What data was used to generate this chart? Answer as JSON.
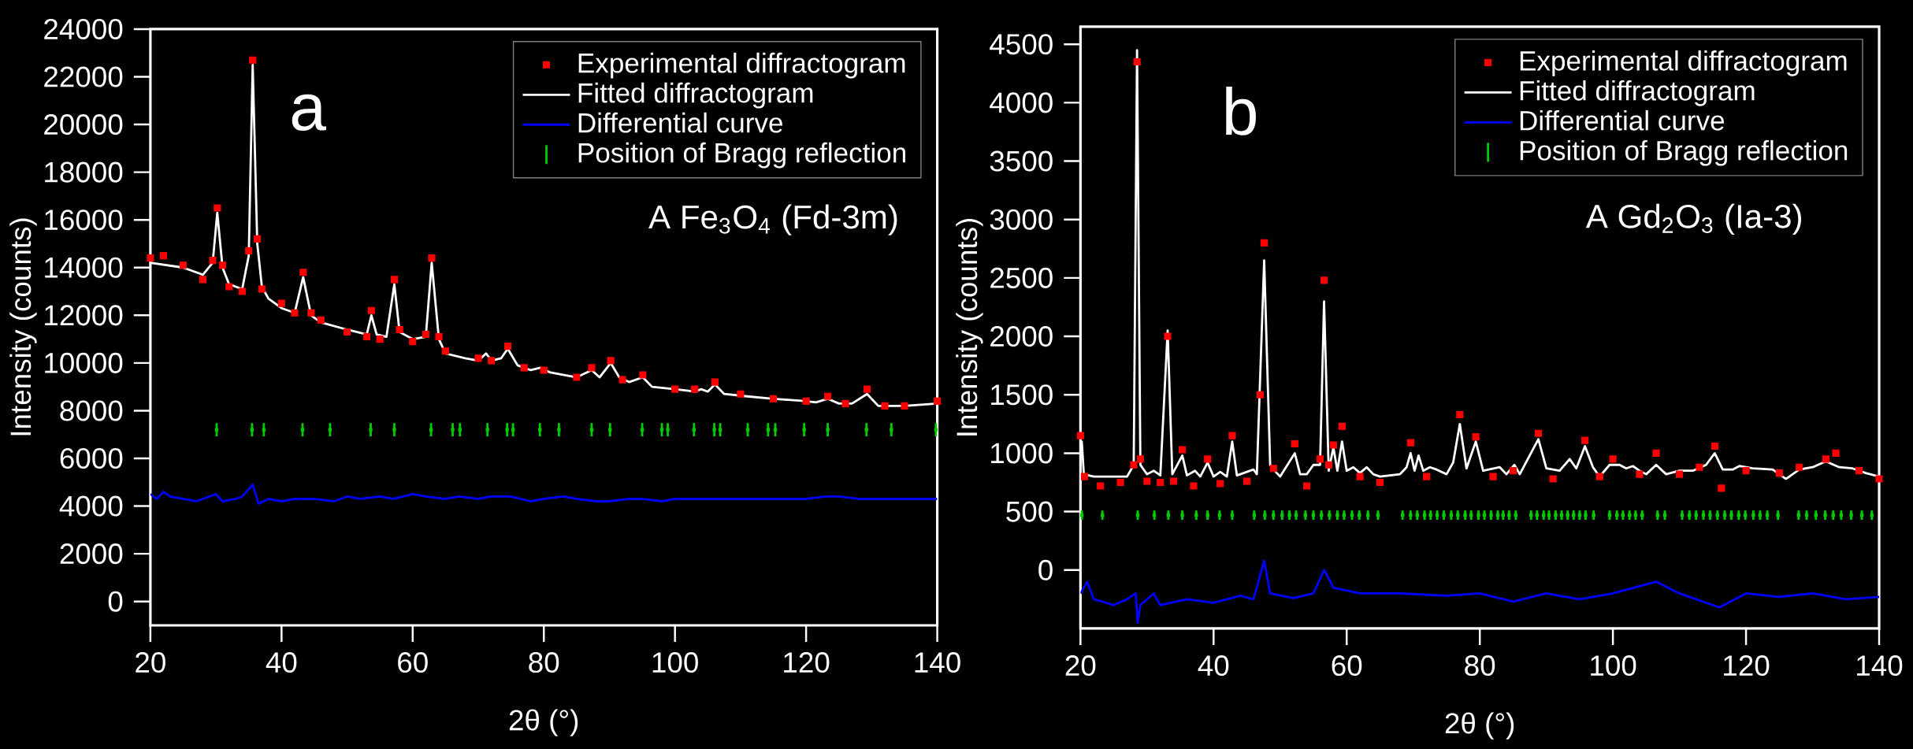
{
  "chart_data": [
    {
      "type": "scatter",
      "xlabel": "2θ (°)",
      "ylabel": "Intensity (counts)",
      "xlim": [
        20,
        140
      ],
      "xticks": [
        20,
        40,
        60,
        80,
        100,
        120,
        140
      ],
      "ylim": [
        -1000,
        24000
      ],
      "yticks": [
        0,
        2000,
        4000,
        6000,
        8000,
        10000,
        12000,
        14000,
        16000,
        18000,
        20000,
        22000,
        24000
      ],
      "legend": "top right",
      "annotations": [
        "a",
        "A Fe$_{3}$O$_{4}$ (Fd-3m)"
      ],
      "series": [
        {
          "name": "Experimental diffractogram",
          "color": "#ff0000",
          "marker": "square",
          "x": [
            20,
            22,
            25,
            28,
            29.5,
            30.2,
            31,
            32,
            34,
            35,
            35.6,
            36.3,
            37,
            40,
            42,
            43.3,
            44.5,
            46,
            50,
            53,
            53.7,
            55,
            57.2,
            58,
            60,
            62,
            62.9,
            64,
            65,
            70,
            72,
            74.5,
            77,
            80,
            85,
            87.3,
            90.2,
            92,
            95.1,
            100,
            103,
            106.1,
            110,
            115,
            120,
            123.3,
            126,
            129.3,
            132,
            135,
            140
          ],
          "values": [
            14400,
            14500,
            14100,
            13500,
            14300,
            16500,
            14100,
            13200,
            13000,
            14700,
            22700,
            15200,
            13100,
            12500,
            12100,
            13800,
            12100,
            11800,
            11300,
            11100,
            12200,
            11000,
            13500,
            11400,
            10900,
            11200,
            14400,
            11100,
            10500,
            10200,
            10100,
            10700,
            9800,
            9700,
            9400,
            9800,
            10100,
            9300,
            9500,
            8900,
            8900,
            9200,
            8700,
            8500,
            8400,
            8600,
            8300,
            8900,
            8200,
            8200,
            8400
          ]
        },
        {
          "type": "line",
          "name": "Fitted diffractogram",
          "color": "#ffffff",
          "marker": "none",
          "x": [
            20,
            25,
            28,
            29.5,
            30.2,
            31,
            32,
            34,
            35,
            35.6,
            36.3,
            37,
            38,
            40,
            42,
            43.3,
            44.5,
            46,
            50,
            53,
            53.7,
            54.5,
            56,
            57.2,
            58,
            60,
            62,
            62.9,
            64,
            65,
            68,
            70,
            71.2,
            72,
            73.5,
            74.5,
            76,
            78,
            79.5,
            81,
            85,
            87.3,
            88.5,
            90.2,
            91.5,
            93,
            95.1,
            96.5,
            100,
            103,
            104,
            105,
            106.1,
            107.5,
            111,
            115,
            120,
            121.5,
            123.3,
            125,
            127,
            129.3,
            131,
            135,
            140
          ],
          "values": [
            14200,
            14000,
            13700,
            14200,
            16300,
            14000,
            13300,
            13100,
            14500,
            22500,
            15000,
            13200,
            12700,
            12300,
            12100,
            13600,
            12000,
            11700,
            11400,
            11200,
            12000,
            11200,
            11100,
            13300,
            11300,
            11000,
            11100,
            14200,
            11000,
            10400,
            10200,
            10100,
            10400,
            10100,
            10200,
            10600,
            9900,
            9700,
            9800,
            9600,
            9400,
            9700,
            9400,
            10000,
            9400,
            9200,
            9400,
            9000,
            8900,
            8800,
            8900,
            8800,
            9100,
            8700,
            8600,
            8500,
            8400,
            8350,
            8500,
            8300,
            8300,
            8700,
            8200,
            8200,
            8300
          ]
        },
        {
          "type": "line",
          "name": "Differential curve",
          "color": "#0000ff",
          "marker": "none",
          "x": [
            20,
            21,
            22,
            23,
            25,
            27,
            28,
            30,
            31,
            33,
            34,
            35.6,
            36.5,
            38,
            40,
            42,
            45,
            48,
            50,
            52,
            55,
            57,
            60,
            62,
            65,
            67,
            70,
            72,
            75,
            78,
            80,
            83,
            85,
            88,
            90,
            93,
            95,
            98,
            100,
            105,
            110,
            115,
            120,
            123,
            125,
            128,
            130,
            135,
            140
          ],
          "values": [
            4500,
            4300,
            4600,
            4400,
            4300,
            4200,
            4300,
            4500,
            4200,
            4300,
            4400,
            4900,
            4100,
            4300,
            4200,
            4300,
            4300,
            4200,
            4400,
            4300,
            4400,
            4300,
            4500,
            4400,
            4300,
            4400,
            4300,
            4400,
            4400,
            4200,
            4300,
            4400,
            4300,
            4200,
            4200,
            4300,
            4300,
            4200,
            4300,
            4300,
            4300,
            4300,
            4300,
            4400,
            4400,
            4300,
            4300,
            4300,
            4300
          ]
        },
        {
          "name": "Position of Bragg reflection",
          "color": "#00cc00",
          "marker": "square",
          "errors": [
            280,
            280,
            280,
            280,
            280,
            280,
            280,
            280,
            280,
            280,
            280,
            280,
            280,
            280,
            280,
            280,
            280,
            280,
            280,
            280,
            280,
            280,
            280,
            280,
            280,
            280,
            280,
            280,
            280,
            280,
            280
          ],
          "x": [
            30.1,
            35.5,
            37.3,
            43.2,
            47.4,
            53.6,
            57.2,
            62.8,
            66.1,
            67.2,
            71.4,
            74.4,
            75.3,
            79.4,
            82.3,
            87.3,
            90.1,
            95.0,
            98.0,
            98.9,
            102.9,
            106.0,
            106.9,
            111.1,
            114.2,
            115.3,
            119.7,
            123.3,
            129.2,
            133.0,
            139.8
          ],
          "values": [
            7200,
            7200,
            7200,
            7200,
            7200,
            7200,
            7200,
            7200,
            7200,
            7200,
            7200,
            7200,
            7200,
            7200,
            7200,
            7200,
            7200,
            7200,
            7200,
            7200,
            7200,
            7200,
            7200,
            7200,
            7200,
            7200,
            7200,
            7200,
            7200,
            7200,
            7200
          ]
        }
      ]
    },
    {
      "type": "scatter",
      "xlabel": "2θ (°)",
      "ylabel": "Intensity (counts)",
      "xlim": [
        20,
        140
      ],
      "xticks": [
        20,
        40,
        60,
        80,
        100,
        120,
        140
      ],
      "ylim": [
        -500,
        4650
      ],
      "yticks": [
        0,
        500,
        1000,
        1500,
        2000,
        2500,
        3000,
        3500,
        4000,
        4500
      ],
      "legend": "top right",
      "annotations": [
        "b",
        "A Gd$_{2}$O$_{3}$ (Ia-3)"
      ],
      "series": [
        {
          "name": "Experimental diffractogram",
          "color": "#ff0000",
          "marker": "square",
          "x": [
            20,
            20.6,
            23,
            26,
            28,
            28.5,
            29,
            30,
            32,
            33.1,
            34,
            35.3,
            37,
            39.1,
            41,
            42.8,
            45,
            47,
            47.6,
            49,
            52.2,
            54,
            56,
            56.6,
            57.3,
            58,
            59.3,
            62,
            65,
            69.6,
            72,
            77,
            79.4,
            82,
            85,
            88.8,
            91,
            95.8,
            98,
            100,
            104,
            106.5,
            110,
            113,
            115.3,
            116.3,
            120,
            125,
            128,
            132,
            133.5,
            137,
            140
          ],
          "values": [
            1150,
            800,
            720,
            750,
            900,
            4350,
            950,
            760,
            750,
            2000,
            760,
            1030,
            720,
            950,
            740,
            1150,
            760,
            1500,
            2800,
            870,
            1080,
            720,
            950,
            2480,
            900,
            1070,
            1230,
            800,
            750,
            1090,
            800,
            1330,
            1140,
            800,
            850,
            1170,
            780,
            1110,
            800,
            950,
            820,
            1000,
            820,
            880,
            1060,
            700,
            850,
            830,
            880,
            950,
            1000,
            850,
            780
          ]
        },
        {
          "type": "line",
          "name": "Fitted diffractogram",
          "color": "#ffffff",
          "marker": "none",
          "x": [
            20,
            20.2,
            20.5,
            22,
            27,
            28,
            28.5,
            29,
            30,
            31,
            32,
            33.1,
            33.8,
            35.3,
            36,
            37.2,
            38,
            39.1,
            40,
            41,
            42,
            42.8,
            43.5,
            46,
            46.5,
            47.6,
            48.5,
            49.5,
            50,
            52.2,
            53,
            54,
            55,
            56,
            56.6,
            57.3,
            58,
            58.6,
            59.3,
            60,
            61,
            62,
            63,
            64,
            65,
            68,
            69,
            69.6,
            70.2,
            70.8,
            71.5,
            72.5,
            73.5,
            75,
            76,
            77,
            78,
            79.4,
            80.5,
            83,
            84,
            85.2,
            86,
            88.8,
            90,
            92,
            93.5,
            94.5,
            95.8,
            97,
            98,
            99.5,
            101,
            102,
            103,
            104,
            105,
            106.5,
            108,
            110,
            112,
            114,
            115.3,
            116.5,
            118,
            119,
            121,
            124,
            126,
            128,
            130,
            132,
            134,
            136,
            138,
            140
          ],
          "values": [
            1050,
            1100,
            820,
            800,
            800,
            900,
            4450,
            900,
            820,
            850,
            810,
            2050,
            820,
            980,
            810,
            850,
            800,
            920,
            800,
            840,
            800,
            1100,
            810,
            860,
            820,
            2650,
            900,
            830,
            800,
            1000,
            820,
            820,
            900,
            900,
            2300,
            850,
            1050,
            850,
            1100,
            850,
            880,
            830,
            880,
            820,
            800,
            820,
            880,
            1000,
            850,
            980,
            850,
            880,
            860,
            820,
            920,
            1250,
            870,
            1100,
            850,
            880,
            820,
            900,
            820,
            1120,
            870,
            850,
            950,
            870,
            1060,
            880,
            800,
            900,
            900,
            870,
            890,
            850,
            820,
            900,
            820,
            850,
            850,
            900,
            1000,
            860,
            860,
            890,
            870,
            860,
            780,
            860,
            880,
            930,
            880,
            870,
            830,
            800
          ]
        },
        {
          "type": "line",
          "name": "Differential curve",
          "color": "#0000ff",
          "marker": "none",
          "x": [
            20,
            21,
            22,
            25,
            27,
            28.3,
            28.6,
            29,
            31,
            32,
            36,
            40,
            44,
            46,
            47.6,
            48.5,
            52,
            55,
            56.6,
            58,
            62,
            68,
            75,
            80,
            85,
            90,
            95,
            100,
            106.5,
            110,
            116,
            120,
            125,
            130,
            135,
            140
          ],
          "values": [
            -200,
            -100,
            -250,
            -300,
            -250,
            -200,
            -450,
            -300,
            -200,
            -300,
            -250,
            -280,
            -220,
            -250,
            80,
            -200,
            -240,
            -200,
            0,
            -150,
            -200,
            -200,
            -220,
            -200,
            -270,
            -200,
            -250,
            -200,
            -100,
            -200,
            -320,
            -200,
            -230,
            -200,
            -250,
            -230
          ]
        },
        {
          "name": "Position of Bragg reflection",
          "color": "#00cc00",
          "marker": "square",
          "errors": [
            40,
            40,
            40,
            40,
            40,
            40,
            40,
            40,
            40,
            40,
            40,
            40,
            40,
            40,
            40,
            40,
            40,
            40,
            40,
            40,
            40,
            40,
            40,
            40,
            40,
            40,
            40,
            40,
            40,
            40,
            40,
            40,
            40,
            40,
            40,
            40,
            40,
            40,
            40,
            40,
            40,
            40,
            40,
            40,
            40,
            40,
            40,
            40,
            40,
            40,
            40,
            40,
            40,
            40,
            40,
            40,
            40,
            40,
            40,
            40,
            40,
            40,
            40,
            40,
            40,
            40,
            40,
            40,
            40,
            40,
            40,
            40,
            40,
            40,
            40,
            40,
            40,
            40,
            40,
            40,
            40,
            40,
            40,
            40,
            40,
            40
          ],
          "x": [
            20.2,
            23.3,
            28.6,
            31.1,
            33.2,
            35.3,
            37.4,
            39.1,
            40.9,
            42.8,
            46.1,
            47.7,
            49.0,
            50.3,
            51.4,
            52.4,
            53.8,
            55.0,
            56.2,
            57.4,
            58.6,
            59.6,
            60.8,
            61.9,
            63.2,
            64.7,
            68.4,
            69.6,
            70.6,
            71.7,
            72.6,
            73.6,
            74.6,
            75.7,
            76.7,
            77.8,
            78.7,
            79.8,
            80.7,
            81.7,
            82.7,
            83.5,
            84.4,
            85.4,
            87.7,
            88.6,
            89.6,
            90.4,
            91.4,
            92.3,
            93.2,
            94.1,
            95.0,
            95.9,
            97.1,
            99.5,
            100.6,
            101.5,
            102.5,
            103.4,
            104.4,
            106.7,
            107.8,
            110.4,
            111.5,
            112.5,
            113.6,
            114.6,
            115.7,
            116.8,
            117.8,
            118.9,
            119.9,
            121.1,
            122.1,
            123.2,
            124.8,
            127.9,
            129.1,
            130.5,
            131.9,
            133.1,
            134.3,
            135.8,
            137.4,
            138.9
          ],
          "values": [
            470,
            470,
            470,
            470,
            470,
            470,
            470,
            470,
            470,
            470,
            470,
            470,
            470,
            470,
            470,
            470,
            470,
            470,
            470,
            470,
            470,
            470,
            470,
            470,
            470,
            470,
            470,
            470,
            470,
            470,
            470,
            470,
            470,
            470,
            470,
            470,
            470,
            470,
            470,
            470,
            470,
            470,
            470,
            470,
            470,
            470,
            470,
            470,
            470,
            470,
            470,
            470,
            470,
            470,
            470,
            470,
            470,
            470,
            470,
            470,
            470,
            470,
            470,
            470,
            470,
            470,
            470,
            470,
            470,
            470,
            470,
            470,
            470,
            470,
            470,
            470,
            470,
            470,
            470,
            470,
            470,
            470,
            470,
            470,
            470,
            470
          ]
        }
      ]
    }
  ]
}
